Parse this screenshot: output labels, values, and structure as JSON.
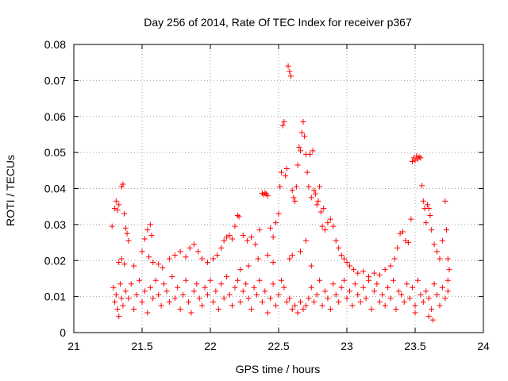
{
  "chart_data": {
    "type": "scatter",
    "title": "Day 256 of 2014, Rate Of TEC Index for receiver p367",
    "xlabel": "GPS time / hours",
    "ylabel": "ROTI / TECUs",
    "xlim": [
      21,
      24
    ],
    "ylim": [
      0,
      0.08
    ],
    "xticks": [
      21,
      21.5,
      22,
      22.5,
      23,
      23.5,
      24
    ],
    "xtick_labels": [
      "21",
      "21.5",
      "22",
      "22.5",
      "23",
      "23.5",
      "24"
    ],
    "yticks": [
      0,
      0.01,
      0.02,
      0.03,
      0.04,
      0.05,
      0.06,
      0.07,
      0.08
    ],
    "ytick_labels": [
      "0",
      "0.01",
      "0.02",
      "0.03",
      "0.04",
      "0.05",
      "0.06",
      "0.07",
      "0.08"
    ],
    "grid": true,
    "marker": "+",
    "color": "#ff0000",
    "series": [
      {
        "name": "ROTI",
        "points": [
          [
            21.28,
            0.0295
          ],
          [
            21.3,
            0.0345
          ],
          [
            21.31,
            0.0365
          ],
          [
            21.32,
            0.034
          ],
          [
            21.33,
            0.0355
          ],
          [
            21.35,
            0.0405
          ],
          [
            21.36,
            0.0412
          ],
          [
            21.37,
            0.033
          ],
          [
            21.38,
            0.029
          ],
          [
            21.39,
            0.0275
          ],
          [
            21.4,
            0.0255
          ],
          [
            21.33,
            0.0195
          ],
          [
            21.35,
            0.0205
          ],
          [
            21.37,
            0.019
          ],
          [
            21.44,
            0.0185
          ],
          [
            21.5,
            0.0225
          ],
          [
            21.52,
            0.026
          ],
          [
            21.54,
            0.0285
          ],
          [
            21.56,
            0.03
          ],
          [
            21.57,
            0.027
          ],
          [
            21.55,
            0.021
          ],
          [
            21.58,
            0.0195
          ],
          [
            21.62,
            0.019
          ],
          [
            21.65,
            0.018
          ],
          [
            21.7,
            0.0205
          ],
          [
            21.74,
            0.0215
          ],
          [
            21.78,
            0.0225
          ],
          [
            21.82,
            0.021
          ],
          [
            21.85,
            0.0235
          ],
          [
            21.88,
            0.0245
          ],
          [
            21.91,
            0.0225
          ],
          [
            21.94,
            0.0205
          ],
          [
            21.98,
            0.0195
          ],
          [
            22.02,
            0.0205
          ],
          [
            22.05,
            0.0215
          ],
          [
            22.08,
            0.0235
          ],
          [
            22.1,
            0.0255
          ],
          [
            22.12,
            0.0265
          ],
          [
            22.14,
            0.027
          ],
          [
            22.16,
            0.026
          ],
          [
            22.18,
            0.0295
          ],
          [
            22.2,
            0.0325
          ],
          [
            22.21,
            0.0322
          ],
          [
            22.24,
            0.027
          ],
          [
            22.27,
            0.0255
          ],
          [
            22.3,
            0.0265
          ],
          [
            22.33,
            0.0245
          ],
          [
            22.36,
            0.0285
          ],
          [
            22.38,
            0.0387
          ],
          [
            22.39,
            0.0383
          ],
          [
            22.4,
            0.0388
          ],
          [
            22.41,
            0.0385
          ],
          [
            22.42,
            0.038
          ],
          [
            22.44,
            0.029
          ],
          [
            22.46,
            0.0265
          ],
          [
            22.48,
            0.0305
          ],
          [
            22.5,
            0.033
          ],
          [
            22.51,
            0.0405
          ],
          [
            22.52,
            0.0445
          ],
          [
            22.53,
            0.0575
          ],
          [
            22.54,
            0.0585
          ],
          [
            22.55,
            0.0435
          ],
          [
            22.56,
            0.0455
          ],
          [
            22.57,
            0.074
          ],
          [
            22.58,
            0.0725
          ],
          [
            22.59,
            0.0712
          ],
          [
            22.6,
            0.0395
          ],
          [
            22.61,
            0.0375
          ],
          [
            22.62,
            0.0365
          ],
          [
            22.63,
            0.0405
          ],
          [
            22.64,
            0.0465
          ],
          [
            22.65,
            0.0515
          ],
          [
            22.66,
            0.0505
          ],
          [
            22.67,
            0.0555
          ],
          [
            22.68,
            0.0585
          ],
          [
            22.69,
            0.0545
          ],
          [
            22.7,
            0.0495
          ],
          [
            22.71,
            0.0445
          ],
          [
            22.72,
            0.0405
          ],
          [
            22.73,
            0.0495
          ],
          [
            22.74,
            0.0375
          ],
          [
            22.75,
            0.0505
          ],
          [
            22.76,
            0.0395
          ],
          [
            22.77,
            0.0385
          ],
          [
            22.78,
            0.0355
          ],
          [
            22.79,
            0.0365
          ],
          [
            22.8,
            0.0405
          ],
          [
            22.81,
            0.0335
          ],
          [
            22.82,
            0.0295
          ],
          [
            22.83,
            0.0345
          ],
          [
            22.84,
            0.0285
          ],
          [
            22.86,
            0.0305
          ],
          [
            22.88,
            0.0315
          ],
          [
            22.9,
            0.0295
          ],
          [
            22.92,
            0.0255
          ],
          [
            22.94,
            0.0235
          ],
          [
            22.96,
            0.0215
          ],
          [
            22.98,
            0.0205
          ],
          [
            23.0,
            0.0195
          ],
          [
            23.02,
            0.0185
          ],
          [
            23.05,
            0.0175
          ],
          [
            23.08,
            0.0165
          ],
          [
            23.12,
            0.017
          ],
          [
            23.16,
            0.0155
          ],
          [
            23.2,
            0.0165
          ],
          [
            23.24,
            0.016
          ],
          [
            23.28,
            0.0175
          ],
          [
            23.32,
            0.0185
          ],
          [
            23.35,
            0.0205
          ],
          [
            23.37,
            0.0235
          ],
          [
            23.39,
            0.0275
          ],
          [
            23.41,
            0.028
          ],
          [
            23.43,
            0.0255
          ],
          [
            23.45,
            0.025
          ],
          [
            23.47,
            0.0315
          ],
          [
            23.48,
            0.0475
          ],
          [
            23.49,
            0.0485
          ],
          [
            23.5,
            0.0478
          ],
          [
            23.51,
            0.049
          ],
          [
            23.52,
            0.0482
          ],
          [
            23.53,
            0.0488
          ],
          [
            23.54,
            0.0485
          ],
          [
            23.55,
            0.0408
          ],
          [
            23.56,
            0.0365
          ],
          [
            23.57,
            0.0345
          ],
          [
            23.58,
            0.0305
          ],
          [
            23.59,
            0.0355
          ],
          [
            23.6,
            0.0345
          ],
          [
            23.61,
            0.0325
          ],
          [
            23.62,
            0.0285
          ],
          [
            23.64,
            0.0245
          ],
          [
            23.66,
            0.0225
          ],
          [
            23.68,
            0.0205
          ],
          [
            23.7,
            0.0255
          ],
          [
            23.72,
            0.0365
          ],
          [
            23.73,
            0.0285
          ],
          [
            23.74,
            0.0205
          ],
          [
            23.75,
            0.0175
          ],
          [
            23.74,
            0.0145
          ],
          [
            21.29,
            0.0125
          ],
          [
            21.3,
            0.0085
          ],
          [
            21.31,
            0.0105
          ],
          [
            21.32,
            0.0065
          ],
          [
            21.33,
            0.0045
          ],
          [
            21.34,
            0.0135
          ],
          [
            21.35,
            0.0095
          ],
          [
            21.36,
            0.0075
          ],
          [
            21.38,
            0.0115
          ],
          [
            21.4,
            0.0095
          ],
          [
            21.42,
            0.0135
          ],
          [
            21.44,
            0.0065
          ],
          [
            21.46,
            0.0105
          ],
          [
            21.48,
            0.0145
          ],
          [
            21.5,
            0.0085
          ],
          [
            21.52,
            0.0115
          ],
          [
            21.54,
            0.0055
          ],
          [
            21.56,
            0.0125
          ],
          [
            21.58,
            0.0095
          ],
          [
            21.6,
            0.0145
          ],
          [
            21.62,
            0.0105
          ],
          [
            21.64,
            0.0075
          ],
          [
            21.66,
            0.0135
          ],
          [
            21.68,
            0.0115
          ],
          [
            21.7,
            0.0085
          ],
          [
            21.72,
            0.0155
          ],
          [
            21.74,
            0.0095
          ],
          [
            21.76,
            0.0125
          ],
          [
            21.78,
            0.0065
          ],
          [
            21.8,
            0.0105
          ],
          [
            21.82,
            0.0145
          ],
          [
            21.84,
            0.0085
          ],
          [
            21.86,
            0.0055
          ],
          [
            21.88,
            0.0115
          ],
          [
            21.9,
            0.0135
          ],
          [
            21.92,
            0.0095
          ],
          [
            21.94,
            0.0075
          ],
          [
            21.96,
            0.0125
          ],
          [
            21.98,
            0.0105
          ],
          [
            22.0,
            0.0145
          ],
          [
            22.02,
            0.0085
          ],
          [
            22.04,
            0.0115
          ],
          [
            22.06,
            0.0065
          ],
          [
            22.08,
            0.0135
          ],
          [
            22.1,
            0.0095
          ],
          [
            22.12,
            0.0155
          ],
          [
            22.14,
            0.0105
          ],
          [
            22.16,
            0.0075
          ],
          [
            22.18,
            0.0125
          ],
          [
            22.2,
            0.0145
          ],
          [
            22.22,
            0.0085
          ],
          [
            22.24,
            0.0115
          ],
          [
            22.26,
            0.0135
          ],
          [
            22.28,
            0.0095
          ],
          [
            22.3,
            0.0065
          ],
          [
            22.32,
            0.0125
          ],
          [
            22.34,
            0.0105
          ],
          [
            22.36,
            0.0145
          ],
          [
            22.38,
            0.0085
          ],
          [
            22.4,
            0.0115
          ],
          [
            22.42,
            0.0055
          ],
          [
            22.44,
            0.0095
          ],
          [
            22.46,
            0.0135
          ],
          [
            22.48,
            0.0075
          ],
          [
            22.5,
            0.0105
          ],
          [
            22.52,
            0.0145
          ],
          [
            22.54,
            0.0125
          ],
          [
            22.56,
            0.0085
          ],
          [
            22.58,
            0.0095
          ],
          [
            22.6,
            0.0065
          ],
          [
            22.62,
            0.0075
          ],
          [
            22.64,
            0.0055
          ],
          [
            22.66,
            0.0085
          ],
          [
            22.68,
            0.0065
          ],
          [
            22.7,
            0.0075
          ],
          [
            22.72,
            0.0095
          ],
          [
            22.74,
            0.0125
          ],
          [
            22.76,
            0.0085
          ],
          [
            22.78,
            0.0105
          ],
          [
            22.8,
            0.0145
          ],
          [
            22.82,
            0.0075
          ],
          [
            22.84,
            0.0115
          ],
          [
            22.86,
            0.0095
          ],
          [
            22.88,
            0.0065
          ],
          [
            22.9,
            0.0135
          ],
          [
            22.92,
            0.0105
          ],
          [
            22.94,
            0.0085
          ],
          [
            22.96,
            0.0125
          ],
          [
            22.98,
            0.0145
          ],
          [
            23.0,
            0.0095
          ],
          [
            23.02,
            0.0115
          ],
          [
            23.04,
            0.0075
          ],
          [
            23.06,
            0.0135
          ],
          [
            23.08,
            0.0105
          ],
          [
            23.1,
            0.0085
          ],
          [
            23.12,
            0.0125
          ],
          [
            23.14,
            0.0095
          ],
          [
            23.16,
            0.0145
          ],
          [
            23.18,
            0.0065
          ],
          [
            23.2,
            0.0115
          ],
          [
            23.22,
            0.0135
          ],
          [
            23.24,
            0.0085
          ],
          [
            23.26,
            0.0105
          ],
          [
            23.28,
            0.0075
          ],
          [
            23.3,
            0.0125
          ],
          [
            23.32,
            0.0095
          ],
          [
            23.34,
            0.0145
          ],
          [
            23.36,
            0.0065
          ],
          [
            23.38,
            0.0115
          ],
          [
            23.4,
            0.0105
          ],
          [
            23.42,
            0.0085
          ],
          [
            23.44,
            0.0135
          ],
          [
            23.46,
            0.0095
          ],
          [
            23.48,
            0.0125
          ],
          [
            23.5,
            0.0075
          ],
          [
            23.52,
            0.0145
          ],
          [
            23.54,
            0.0105
          ],
          [
            23.56,
            0.0085
          ],
          [
            23.58,
            0.0115
          ],
          [
            23.6,
            0.0095
          ],
          [
            23.62,
            0.0065
          ],
          [
            23.64,
            0.0135
          ],
          [
            23.66,
            0.0105
          ],
          [
            23.68,
            0.0075
          ],
          [
            23.7,
            0.0125
          ],
          [
            23.72,
            0.0095
          ],
          [
            23.74,
            0.0115
          ],
          [
            23.63,
            0.0035
          ],
          [
            23.6,
            0.0045
          ],
          [
            23.5,
            0.0055
          ],
          [
            22.58,
            0.0205
          ],
          [
            22.6,
            0.0215
          ],
          [
            22.66,
            0.0225
          ],
          [
            22.7,
            0.0255
          ],
          [
            22.74,
            0.0185
          ],
          [
            22.46,
            0.0195
          ],
          [
            22.42,
            0.0215
          ],
          [
            22.35,
            0.0205
          ],
          [
            22.28,
            0.0185
          ],
          [
            22.22,
            0.0175
          ]
        ]
      }
    ]
  }
}
